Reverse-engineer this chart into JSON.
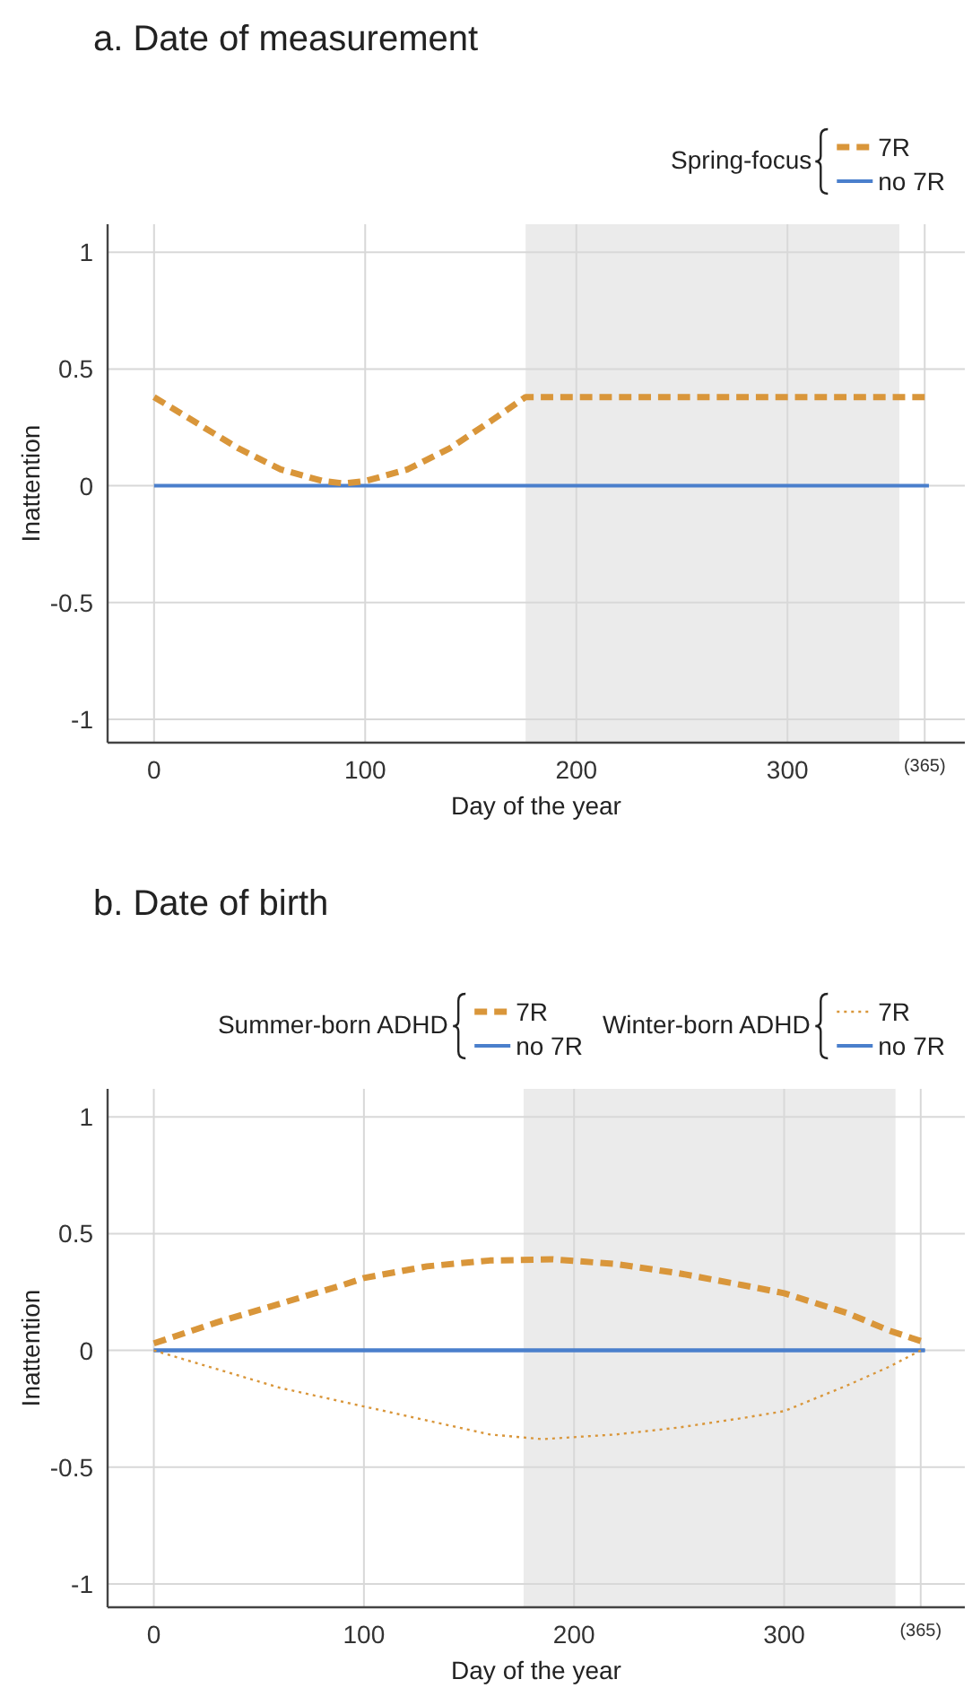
{
  "chart_data": [
    {
      "type": "line",
      "title": "a. Date of measurement",
      "xlabel": "Day of the year",
      "ylabel": "Inattention",
      "annotations": [
        "Spring-focus"
      ],
      "xlim": [
        -22,
        384
      ],
      "xticks": [
        0,
        100,
        200,
        300,
        {
          "value": 365,
          "label": "(365)"
        }
      ],
      "ylim": [
        -1.1,
        1.12
      ],
      "yticks": [
        -1,
        -0.5,
        0,
        0.5,
        1
      ],
      "grid": true,
      "legend": "top right",
      "bands": [
        {
          "axis": "x",
          "from": 176,
          "to": 353,
          "color": "#ebebeb"
        }
      ],
      "series": [
        {
          "name": "7R",
          "color": "#d9963a",
          "line_style": "dashed",
          "x": [
            0,
            20,
            40,
            60,
            80,
            90,
            100,
            120,
            140,
            160,
            176,
            365
          ],
          "values": [
            0.38,
            0.27,
            0.16,
            0.07,
            0.02,
            0.01,
            0.02,
            0.07,
            0.16,
            0.28,
            0.38,
            0.38
          ]
        },
        {
          "name": "no 7R",
          "color": "#4a7fcc",
          "line_style": "solid",
          "x": [
            0,
            367
          ],
          "values": [
            0,
            0
          ]
        }
      ]
    },
    {
      "type": "line",
      "title": "b. Date of birth",
      "xlabel": "Day of the year",
      "ylabel": "Inattention",
      "annotations": [
        "Summer-born ADHD",
        "Winter-born ADHD"
      ],
      "xlim": [
        -22,
        386
      ],
      "xticks": [
        0,
        100,
        200,
        300,
        {
          "value": 365,
          "label": "(365)"
        }
      ],
      "ylim": [
        -1.1,
        1.12
      ],
      "yticks": [
        -1,
        -0.5,
        0,
        0.5,
        1
      ],
      "grid": true,
      "legend": "top right",
      "bands": [
        {
          "axis": "x",
          "from": 176,
          "to": 353,
          "color": "#ebebeb"
        }
      ],
      "series": [
        {
          "name": "7R",
          "color": "#d9963a",
          "line_style": "dashed",
          "x": [
            0,
            30,
            60,
            90,
            100,
            130,
            160,
            190,
            220,
            250,
            280,
            300,
            330,
            350,
            365
          ],
          "values": [
            0.03,
            0.12,
            0.2,
            0.28,
            0.31,
            0.36,
            0.385,
            0.39,
            0.37,
            0.33,
            0.28,
            0.245,
            0.16,
            0.085,
            0.04
          ]
        },
        {
          "name": "no 7R",
          "color": "#4a7fcc",
          "line_style": "solid",
          "x": [
            0,
            367
          ],
          "values": [
            0,
            0
          ]
        },
        {
          "name": "7R",
          "color": "#d9963a",
          "line_style": "dotted",
          "x": [
            0,
            30,
            60,
            100,
            130,
            160,
            185,
            220,
            250,
            280,
            300,
            330,
            350,
            365
          ],
          "values": [
            0,
            -0.08,
            -0.16,
            -0.24,
            -0.3,
            -0.36,
            -0.38,
            -0.36,
            -0.33,
            -0.29,
            -0.26,
            -0.15,
            -0.07,
            0
          ]
        },
        {
          "name": "no 7R",
          "color": "#4a7fcc",
          "line_style": "solid",
          "x": [
            0,
            367
          ],
          "values": [
            0,
            0
          ]
        }
      ]
    }
  ]
}
